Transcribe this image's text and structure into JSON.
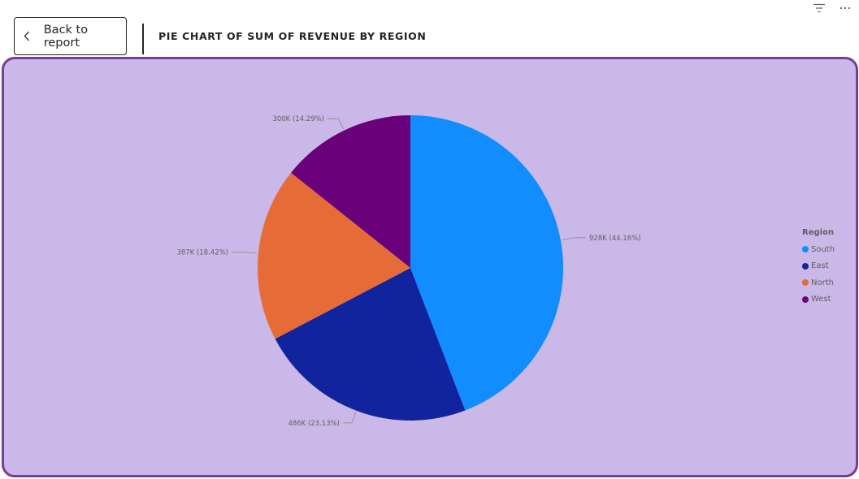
{
  "toolbar": {
    "back_label": "Back to report",
    "icons": [
      "filter-icon",
      "more-options-icon"
    ]
  },
  "page_title": "PIE CHART OF SUM OF REVENUE BY REGION",
  "colors": {
    "container_background": "#c9b8e8",
    "container_border": "#7b3b98"
  },
  "chart_data": {
    "type": "pie",
    "legend_title": "Region",
    "legend_placement": "right",
    "slices": [
      {
        "name": "South",
        "value": 928000,
        "label": "928K (44.16%)",
        "color": "#118dff"
      },
      {
        "name": "East",
        "value": 486000,
        "label": "486K (23.13%)",
        "color": "#12239e"
      },
      {
        "name": "North",
        "value": 387000,
        "label": "387K (18.42%)",
        "color": "#e66c37"
      },
      {
        "name": "West",
        "value": 300000,
        "label": "300K (14.29%)",
        "color": "#6b007b"
      }
    ]
  }
}
